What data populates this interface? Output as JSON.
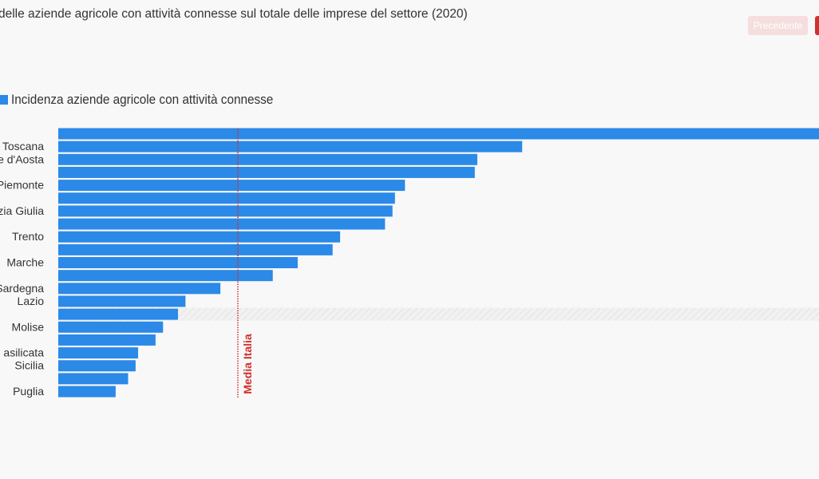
{
  "header": {
    "title": "delle aziende agricole con attività connesse sul totale delle imprese del settore (2020)",
    "prev_label": "Precedente"
  },
  "colors": {
    "bar": "#2b89e8",
    "reference": "#d0312d",
    "prev_button_bg": "#f6dede",
    "next_button_bg": "#d0312d"
  },
  "chart_data": {
    "type": "bar",
    "orientation": "horizontal",
    "legend_position": "top-left",
    "series": [
      {
        "name": "Incidenza aziende agricole con attività connesse"
      }
    ],
    "categories": [
      "",
      "Toscana",
      "e d'Aosta",
      "",
      "Piemonte",
      "",
      "zia Giulia",
      "",
      "Trento",
      "",
      "Marche",
      "",
      "Sardegna",
      "Lazio",
      "",
      "Molise",
      "",
      "asilicata",
      "Sicilia",
      "",
      "Puglia"
    ],
    "values": [
      30.5,
      18.6,
      16.8,
      16.7,
      13.9,
      13.5,
      13.4,
      13.1,
      11.3,
      11.0,
      9.6,
      8.6,
      6.5,
      5.1,
      4.8,
      4.2,
      3.9,
      3.2,
      3.1,
      2.8,
      2.3
    ],
    "xlim": [
      0,
      30.5
    ],
    "highlighted_index": 14,
    "reference_line": {
      "label": "Media Italia",
      "value": 7.2
    },
    "grid": false
  }
}
